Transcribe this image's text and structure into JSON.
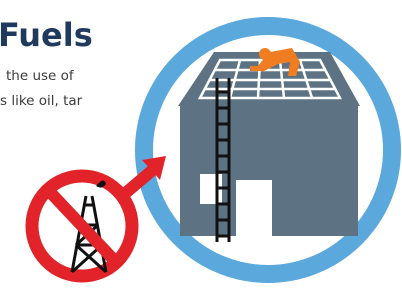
{
  "header": {
    "title": "Fuels"
  },
  "body": {
    "lines": [
      "the use of",
      "s like oil, tar"
    ]
  }
}
